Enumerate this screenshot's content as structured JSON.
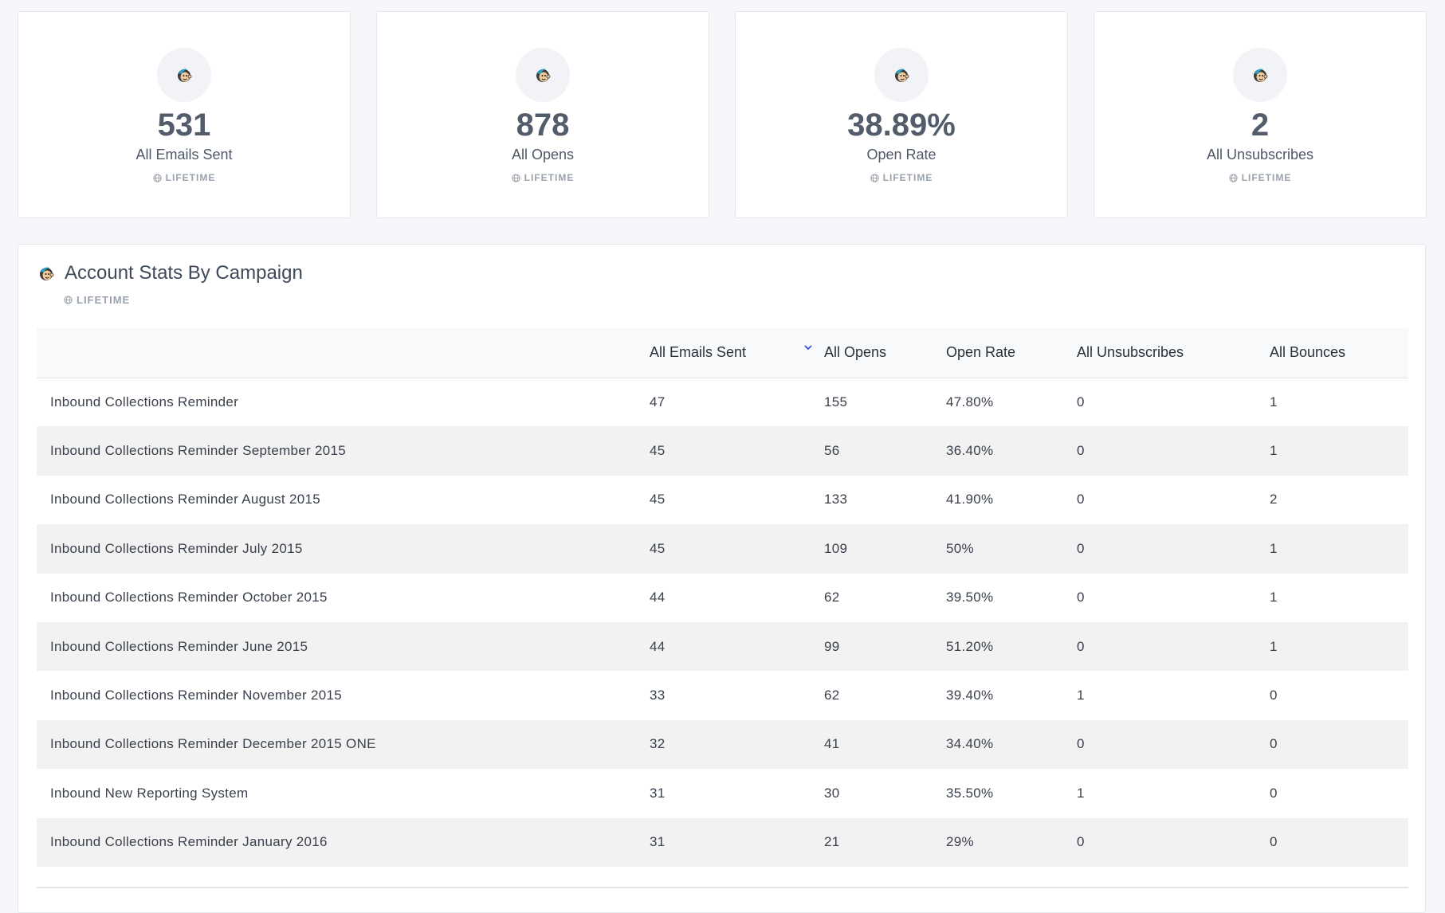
{
  "kpis": [
    {
      "value": "531",
      "label": "All Emails Sent",
      "period": "LIFETIME"
    },
    {
      "value": "878",
      "label": "All Opens",
      "period": "LIFETIME"
    },
    {
      "value": "38.89%",
      "label": "Open Rate",
      "period": "LIFETIME"
    },
    {
      "value": "2",
      "label": "All Unsubscribes",
      "period": "LIFETIME"
    }
  ],
  "icons": {
    "brand": "mailchimp-monkey-icon",
    "period": "globe-icon",
    "sort": "chevron-down-icon"
  },
  "colors": {
    "sort_accent": "#2f55d4"
  },
  "campaign_panel": {
    "title": "Account Stats By Campaign",
    "period": "LIFETIME",
    "columns": [
      "",
      "All Emails Sent",
      "All Opens",
      "Open Rate",
      "All Unsubscribes",
      "All Bounces"
    ],
    "sorted_column": "All Emails Sent",
    "rows": [
      [
        "Inbound Collections Reminder",
        "47",
        "155",
        "47.80%",
        "0",
        "1"
      ],
      [
        "Inbound Collections Reminder September 2015",
        "45",
        "56",
        "36.40%",
        "0",
        "1"
      ],
      [
        "Inbound Collections Reminder August 2015",
        "45",
        "133",
        "41.90%",
        "0",
        "2"
      ],
      [
        "Inbound Collections Reminder July 2015",
        "45",
        "109",
        "50%",
        "0",
        "1"
      ],
      [
        "Inbound Collections Reminder October 2015",
        "44",
        "62",
        "39.50%",
        "0",
        "1"
      ],
      [
        "Inbound Collections Reminder June 2015",
        "44",
        "99",
        "51.20%",
        "0",
        "1"
      ],
      [
        "Inbound Collections Reminder November 2015",
        "33",
        "62",
        "39.40%",
        "1",
        "0"
      ],
      [
        "Inbound Collections Reminder December 2015 ONE",
        "32",
        "41",
        "34.40%",
        "0",
        "0"
      ],
      [
        "Inbound New Reporting System",
        "31",
        "30",
        "35.50%",
        "1",
        "0"
      ],
      [
        "Inbound Collections Reminder January 2016",
        "31",
        "21",
        "29%",
        "0",
        "0"
      ]
    ]
  }
}
